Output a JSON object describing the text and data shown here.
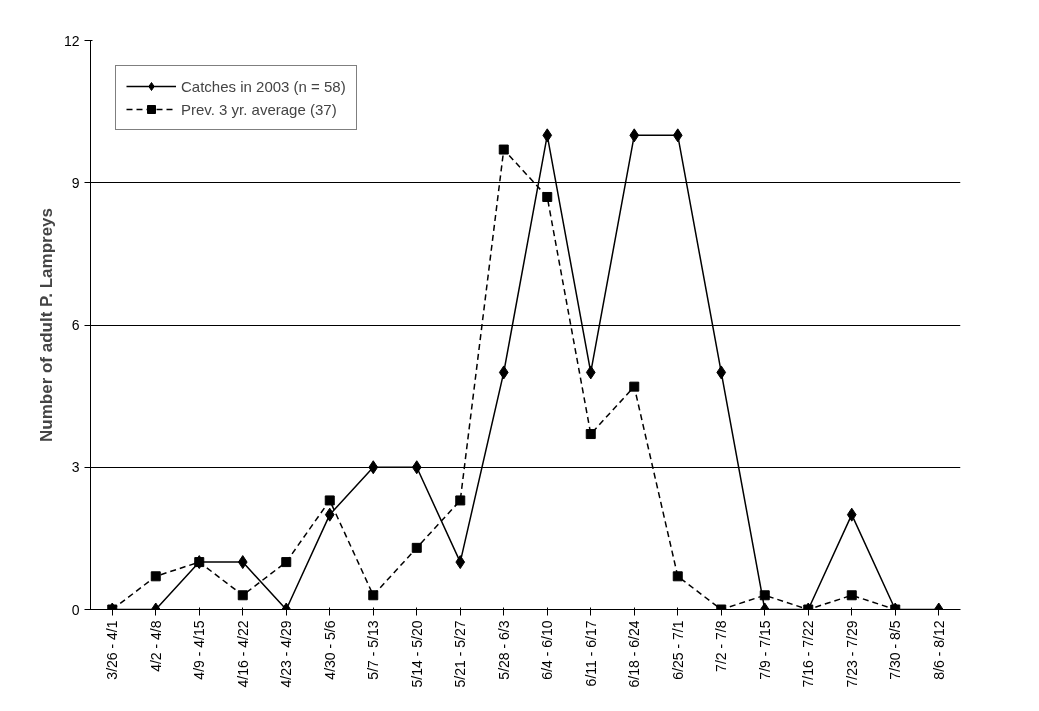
{
  "chart_data": {
    "type": "line",
    "ylabel": "Number of adult P. Lampreys",
    "categories": [
      "3/26 - 4/1",
      "4/2 - 4/8",
      "4/9 - 4/15",
      "4/16 - 4/22",
      "4/23 - 4/29",
      "4/30 - 5/6",
      "5/7 - 5/13",
      "5/14 - 5/20",
      "5/21 - 5/27",
      "5/28 - 6/3",
      "6/4 - 6/10",
      "6/11 - 6/17",
      "6/18 - 6/24",
      "6/25 - 7/1",
      "7/2 - 7/8",
      "7/9 - 7/15",
      "7/16 - 7/22",
      "7/23 - 7/29",
      "7/30 - 8/5",
      "8/6 - 8/12"
    ],
    "series": [
      {
        "name": "Catches in 2003 (n = 58)",
        "color": "#000000",
        "marker": "diamond",
        "line_style": "solid",
        "values": [
          0,
          0,
          1,
          1,
          0,
          2,
          3,
          3,
          1,
          5,
          10,
          5,
          10,
          10,
          5,
          0,
          0,
          2,
          0,
          0
        ]
      },
      {
        "name": "Prev. 3 yr. average (37)",
        "color": "#000000",
        "marker": "square",
        "line_style": "dashed",
        "values": [
          0,
          0.7,
          1,
          0.3,
          1,
          2.3,
          0.3,
          1.3,
          2.3,
          9.7,
          8.7,
          3.7,
          4.7,
          0.7,
          0,
          0.3,
          0,
          0.3,
          0,
          null
        ]
      }
    ],
    "ylim": [
      0,
      12
    ],
    "yticks": [
      0,
      3,
      6,
      9,
      12
    ],
    "grid": "y",
    "legend": "top left"
  }
}
